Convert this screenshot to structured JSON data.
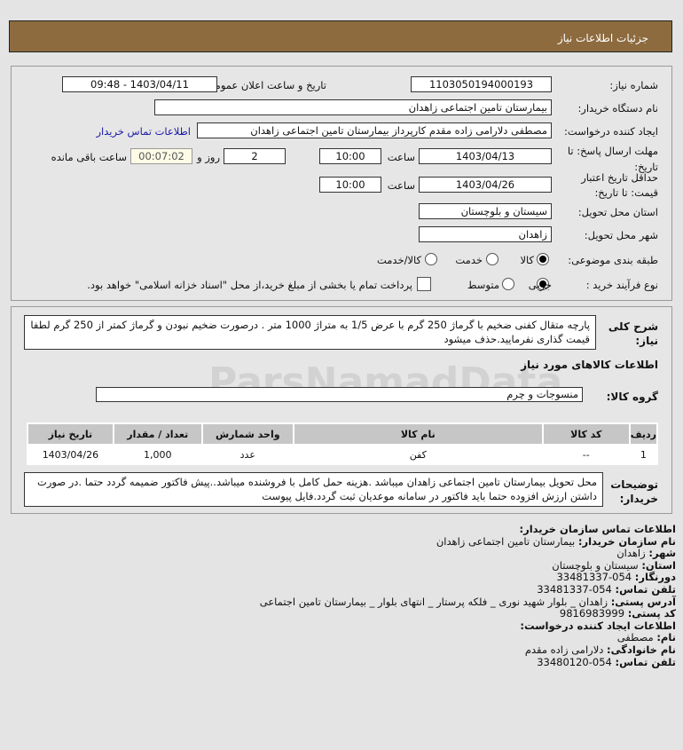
{
  "header": {
    "title": "جزئیات اطلاعات نیاز"
  },
  "form": {
    "need_number_label": "شماره نیاز:",
    "need_number": "1103050194000193",
    "announce_label": "تاریخ و ساعت اعلان عمومی:",
    "announce_value": "1403/04/11 - 09:48",
    "buyer_label": "نام دستگاه خریدار:",
    "buyer_value": "بیمارستان تامین اجتماعی زاهدان",
    "creator_label": "ایجاد کننده درخواست:",
    "creator_value": "مصطفی دلارامی زاده مقدم کارپرداز بیمارستان تامین اجتماعی زاهدان",
    "contact_link": "اطلاعات تماس خریدار",
    "deadline_label": "مهلت ارسال پاسخ: تا",
    "deadline_label2": "تاریخ:",
    "deadline_date": "1403/04/13",
    "time_label": "ساعت",
    "deadline_time": "10:00",
    "days": "2",
    "days_label": "روز و",
    "remaining": "00:07:02",
    "remaining_label": "ساعت باقی مانده",
    "validity_label": "حداقل تاریخ اعتبار",
    "validity_label2": "قیمت: تا تاریخ:",
    "validity_date": "1403/04/26",
    "validity_time": "10:00",
    "province_label": "استان محل تحویل:",
    "province": "سیستان و بلوچستان",
    "city_label": "شهر محل تحویل:",
    "city": "زاهدان",
    "category_label": "طبقه بندی موضوعی:",
    "category_options": [
      "کالا",
      "خدمت",
      "کالا/خدمت"
    ],
    "process_label": "نوع فرآیند خرید :",
    "process_options": [
      "جزیی",
      "متوسط"
    ],
    "payment_note": "پرداخت تمام یا بخشی از مبلغ خرید،از محل \"اسناد خزانه اسلامی\" خواهد بود."
  },
  "details": {
    "desc_label": "شرح کلی نیاز:",
    "desc": "پارچه متقال کفنی ضخیم با گرماژ 250 گرم با عرض 1/5 به متراژ 1000 متر . درصورت ضخیم نبودن و گرماژ کمتر از 250 گرم لطفا قیمت گذاری نفرمایید.حذف میشود",
    "goods_heading": "اطلاعات کالاهای مورد نیاز",
    "group_label": "گروه کالا:",
    "group": "منسوجات و چرم",
    "table": {
      "headers": [
        "ردیف",
        "کد کالا",
        "نام کالا",
        "واحد شمارش",
        "تعداد / مقدار",
        "تاریخ نیاز"
      ],
      "rows": [
        [
          "1",
          "--",
          "کفن",
          "عدد",
          "1,000",
          "1403/04/26"
        ]
      ]
    },
    "notes_label": "توضیحات خریدار:",
    "notes": "محل تحویل بیمارستان تامین اجتماعی زاهدان میباشد .هزینه حمل کامل با فروشنده میباشد..پیش فاکتور ضمیمه گردد حتما .در صورت داشتن ارزش افزوده حتما باید فاکتور در سامانه موعدیان ثبت گردد.فایل پیوست"
  },
  "contact": {
    "heading": "اطلاعات تماس سازمان خریدار:",
    "items": [
      {
        "k": "نام سازمان خریدار:",
        "v": "بیمارستان تامین اجتماعی زاهدان"
      },
      {
        "k": "شهر:",
        "v": "زاهدان"
      },
      {
        "k": "استان:",
        "v": "سیستان و بلوچستان"
      },
      {
        "k": "دورنگار:",
        "v": "054-33481337"
      },
      {
        "k": "تلفن تماس:",
        "v": "054-33481337"
      },
      {
        "k": "آدرس پستی:",
        "v": "زاهدان _ بلوار شهید نوری _ فلکه پرستار _ انتهای بلوار _ بیمارستان تامین اجتماعی"
      },
      {
        "k": "کد پستی:",
        "v": "9816983999"
      }
    ],
    "creator_heading": "اطلاعات ایجاد کننده درخواست:",
    "creator_items": [
      {
        "k": "نام:",
        "v": "مصطفی"
      },
      {
        "k": "نام خانوادگی:",
        "v": "دلارامی زاده مقدم"
      },
      {
        "k": "تلفن تماس:",
        "v": "054-33480120"
      }
    ]
  },
  "watermark": "ParsNamadData"
}
